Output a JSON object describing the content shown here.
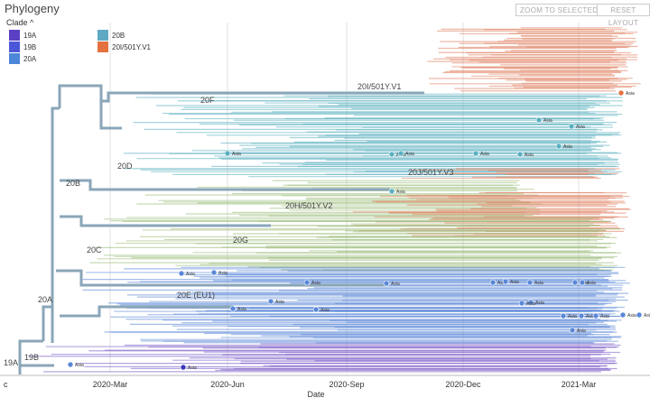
{
  "panel": {
    "title": "Phylogeny",
    "clade_toggle": "Clade ^"
  },
  "legend": [
    {
      "label": "19A",
      "color": "#5B3FC4"
    },
    {
      "label": "19B",
      "color": "#4A57D9"
    },
    {
      "label": "20A",
      "color": "#4C86D8"
    },
    {
      "label": "20B",
      "color": "#5FA9C4"
    },
    {
      "label": "20I/501Y.V1",
      "color": "#E4713F"
    }
  ],
  "buttons": {
    "zoom": "ZOOM TO SELECTED",
    "reset": "RESET LAYOUT"
  },
  "axis": {
    "label": "Date",
    "ticks": [
      "2020-Mar",
      "2020-Jun",
      "2020-Sep",
      "2020-Dec",
      "2021-Mar"
    ]
  },
  "clade_labels": [
    "20I/501Y.V1",
    "20F",
    "20D",
    "20J/501Y.V3",
    "20B",
    "20H/501Y.V2",
    "20G",
    "20C",
    "20A",
    "20E (EU1)",
    "19B",
    "19A"
  ],
  "tip_label": "Asia",
  "colors": {
    "backbone": "#8aa6b8",
    "grid": "#e2e2e2",
    "orange": "#e08060",
    "teal": "#5ab0c0",
    "blue": "#5a88d8",
    "purple": "#7a5ac8",
    "green": "#9cbc7a"
  },
  "corner_text": "c"
}
